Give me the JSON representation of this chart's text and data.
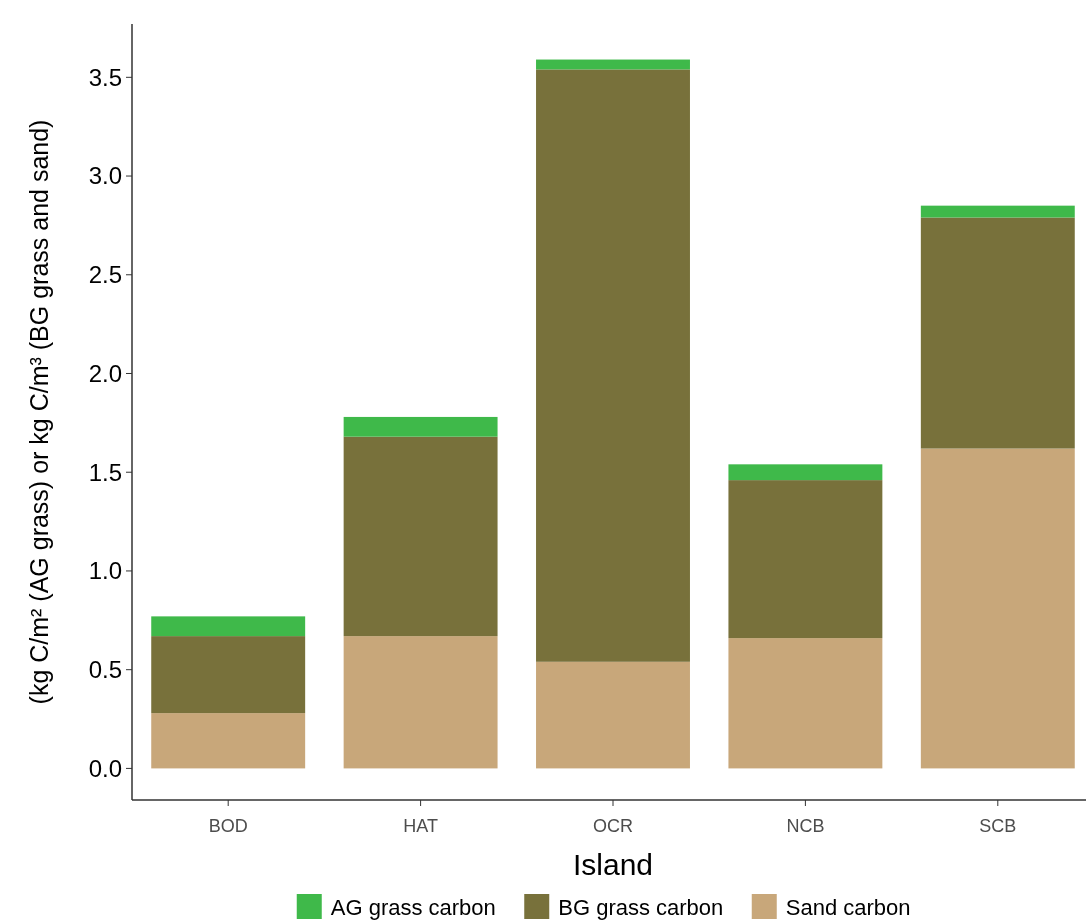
{
  "chart_data": {
    "type": "bar",
    "stacked": true,
    "xlabel": "Island",
    "ylabel": "(kg C/m² (AG grass) or kg C/m³ (BG grass and sand)",
    "categories": [
      "BOD",
      "HAT",
      "OCR",
      "NCB",
      "SCB"
    ],
    "series": [
      {
        "name": "Sand carbon",
        "color": "#c8a77a",
        "values": [
          0.28,
          0.67,
          0.54,
          0.66,
          1.62
        ]
      },
      {
        "name": "BG grass carbon",
        "color": "#78713b",
        "values": [
          0.39,
          1.01,
          3.0,
          0.8,
          1.17
        ]
      },
      {
        "name": "AG grass carbon",
        "color": "#3fb94a",
        "values": [
          0.1,
          0.1,
          0.05,
          0.08,
          0.06
        ]
      }
    ],
    "ylim": [
      -0.16,
      3.77
    ],
    "yticks": [
      {
        "value": 0,
        "label": "0.0"
      },
      {
        "value": 0.5,
        "label": "0.5"
      },
      {
        "value": 1,
        "label": "1.0"
      },
      {
        "value": 1.5,
        "label": "1.5"
      },
      {
        "value": 2,
        "label": "2.0"
      },
      {
        "value": 2.5,
        "label": "2.5"
      },
      {
        "value": 3,
        "label": "3.0"
      },
      {
        "value": 3.5,
        "label": "3.5"
      }
    ],
    "grid": false,
    "legend": "bottom"
  }
}
